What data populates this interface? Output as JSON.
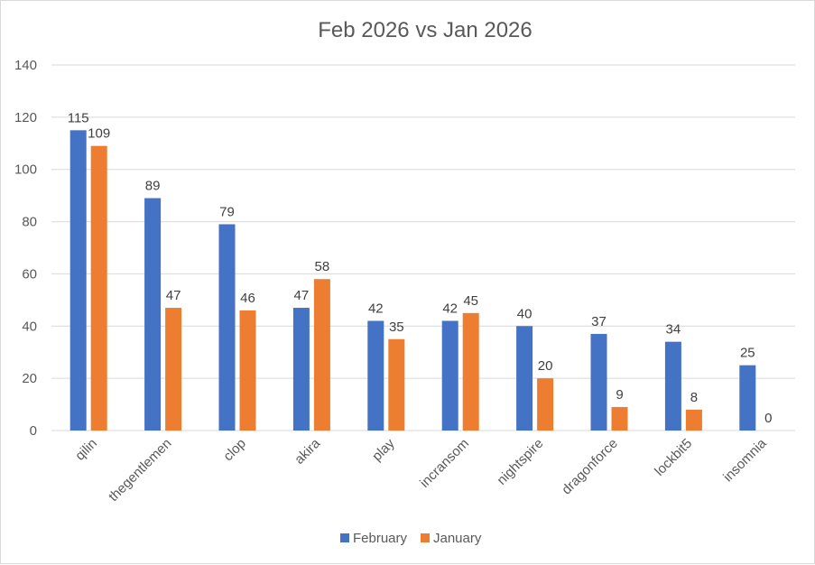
{
  "chart_data": {
    "type": "bar",
    "title": "Feb 2026 vs Jan 2026",
    "xlabel": "",
    "ylabel": "",
    "categories": [
      "qilin",
      "thegentlemen",
      "clop",
      "akira",
      "play",
      "incransom",
      "nightspire",
      "dragonforce",
      "lockbit5",
      "insomnia"
    ],
    "series": [
      {
        "name": "February",
        "color": "#4472C4",
        "values": [
          115,
          89,
          79,
          47,
          42,
          42,
          40,
          37,
          34,
          25
        ]
      },
      {
        "name": "January",
        "color": "#ED7D31",
        "values": [
          109,
          47,
          46,
          58,
          35,
          45,
          20,
          9,
          8,
          0
        ]
      }
    ],
    "ylim": [
      0,
      140
    ],
    "yticks": [
      0,
      20,
      40,
      60,
      80,
      100,
      120,
      140
    ],
    "grid": true,
    "legend_position": "bottom",
    "data_labels": true
  }
}
